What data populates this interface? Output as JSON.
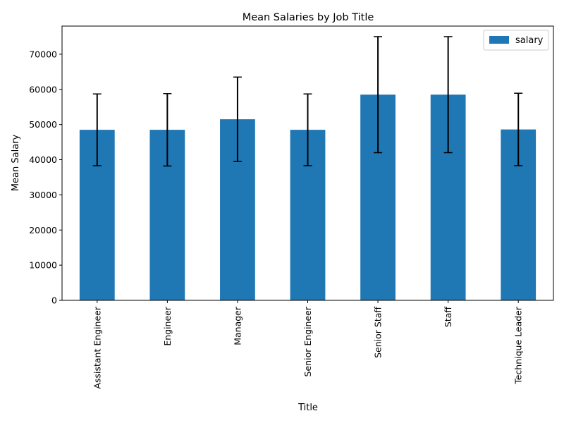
{
  "chart_data": {
    "type": "bar",
    "title": "Mean Salaries by Job Title",
    "xlabel": "Title",
    "ylabel": "Mean Salary",
    "ylim": [
      0,
      78000
    ],
    "yticks": [
      0,
      10000,
      20000,
      30000,
      40000,
      50000,
      60000,
      70000
    ],
    "ytick_labels": [
      "0",
      "10000",
      "20000",
      "30000",
      "40000",
      "50000",
      "60000",
      "70000"
    ],
    "categories": [
      "Assistant Engineer",
      "Engineer",
      "Manager",
      "Senior Engineer",
      "Senior Staff",
      "Staff",
      "Technique Leader"
    ],
    "series": [
      {
        "name": "salary",
        "values": [
          48500,
          48500,
          51500,
          48500,
          58500,
          58500,
          48600
        ],
        "errors": [
          10200,
          10300,
          12000,
          10200,
          16500,
          16500,
          10300
        ]
      }
    ],
    "legend": {
      "position": "top-right",
      "labels": [
        "salary"
      ]
    },
    "grid": false,
    "colors": {
      "bar": "#1f77b4",
      "error": "#000000",
      "axis": "#000000",
      "legend_border": "#cccccc"
    }
  }
}
